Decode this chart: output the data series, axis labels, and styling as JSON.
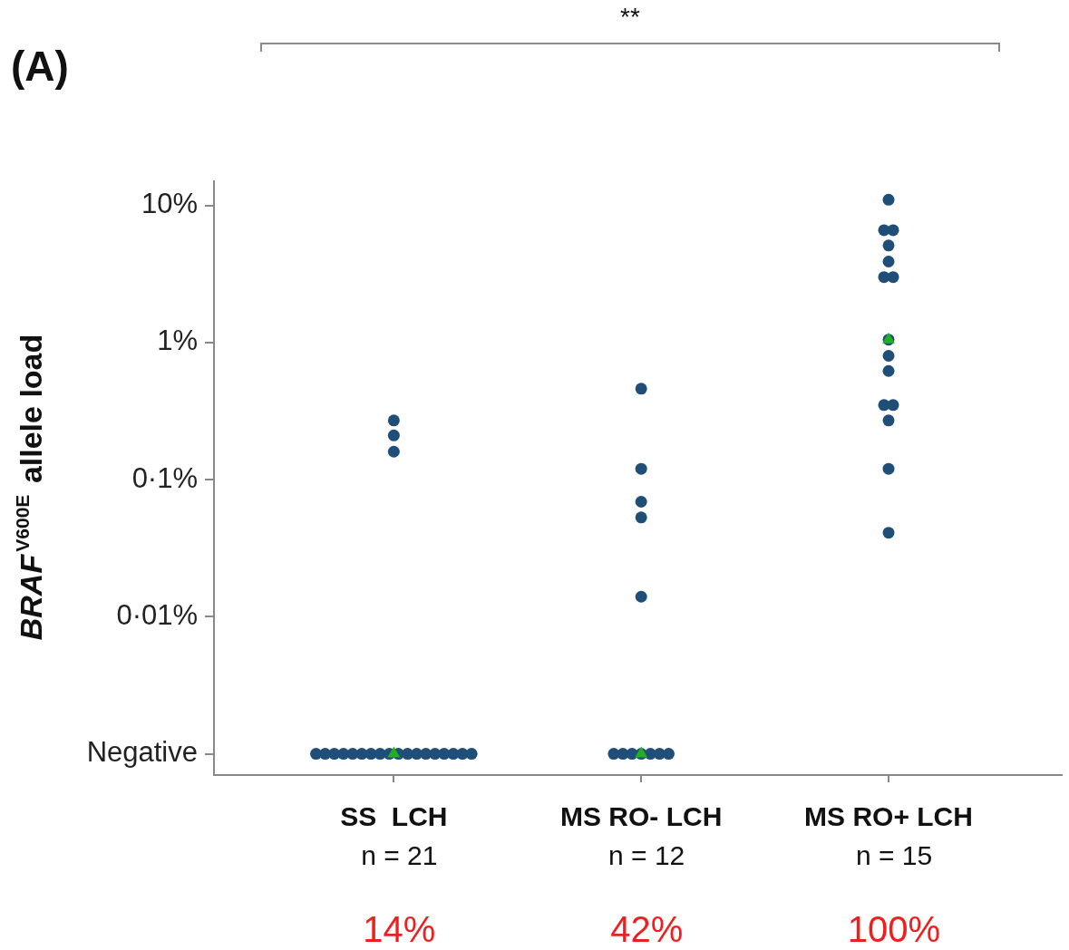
{
  "chart_data": {
    "type": "scatter",
    "ylabel": "BRAF$^{V600E}$ allele load",
    "categories": [
      "SS  LCH",
      "MS RO- LCH",
      "MS RO+ LCH"
    ],
    "series": [
      {
        "color": "#1f4e79",
        "marker": "circle",
        "x": [
          "SS  LCH",
          "SS  LCH",
          "SS  LCH",
          "SS  LCH",
          "SS  LCH",
          "SS  LCH",
          "SS  LCH",
          "SS  LCH",
          "SS  LCH",
          "SS  LCH",
          "SS  LCH",
          "SS  LCH",
          "SS  LCH",
          "SS  LCH",
          "SS  LCH",
          "SS  LCH",
          "SS  LCH",
          "SS  LCH",
          "SS  LCH",
          "SS  LCH",
          "SS  LCH",
          "MS RO- LCH",
          "MS RO- LCH",
          "MS RO- LCH",
          "MS RO- LCH",
          "MS RO- LCH",
          "MS RO- LCH",
          "MS RO- LCH",
          "MS RO- LCH",
          "MS RO- LCH",
          "MS RO- LCH",
          "MS RO- LCH",
          "MS RO- LCH",
          "MS RO+ LCH",
          "MS RO+ LCH",
          "MS RO+ LCH",
          "MS RO+ LCH",
          "MS RO+ LCH",
          "MS RO+ LCH",
          "MS RO+ LCH",
          "MS RO+ LCH",
          "MS RO+ LCH",
          "MS RO+ LCH",
          "MS RO+ LCH",
          "MS RO+ LCH",
          "MS RO+ LCH",
          "MS RO+ LCH",
          "MS RO+ LCH"
        ],
        "values": [
          0.27,
          0.21,
          0.16,
          0.001,
          0.001,
          0.001,
          0.001,
          0.001,
          0.001,
          0.001,
          0.001,
          0.001,
          0.001,
          0.001,
          0.001,
          0.001,
          0.001,
          0.001,
          0.001,
          0.001,
          0.001,
          0.46,
          0.12,
          0.069,
          0.053,
          0.014,
          0.001,
          0.001,
          0.001,
          0.001,
          0.001,
          0.001,
          0.001,
          11,
          6.6,
          6.6,
          5.1,
          3.9,
          3,
          3,
          1.05,
          0.8,
          0.62,
          0.35,
          0.35,
          0.27,
          0.12,
          0.041
        ]
      },
      {
        "color": "#22b022",
        "marker": "triangle",
        "x": [
          "SS  LCH",
          "MS RO- LCH",
          "MS RO+ LCH"
        ],
        "values": [
          0.001,
          0.001,
          1.05
        ]
      }
    ],
    "log": "y",
    "ylim": [
      0.0007,
      15
    ],
    "yticks": [
      {
        "value": 10,
        "label": "10%"
      },
      {
        "value": 1,
        "label": "1%"
      },
      {
        "value": 0.1,
        "label": "0·1%"
      },
      {
        "value": 0.01,
        "label": "0·01%"
      },
      {
        "value": 0.001,
        "label": "Negative"
      }
    ],
    "grid": false,
    "annotations": [
      "(A)",
      "**",
      "n = 21",
      "n = 12",
      "n = 15",
      "14%",
      "42%",
      "100%"
    ]
  }
}
